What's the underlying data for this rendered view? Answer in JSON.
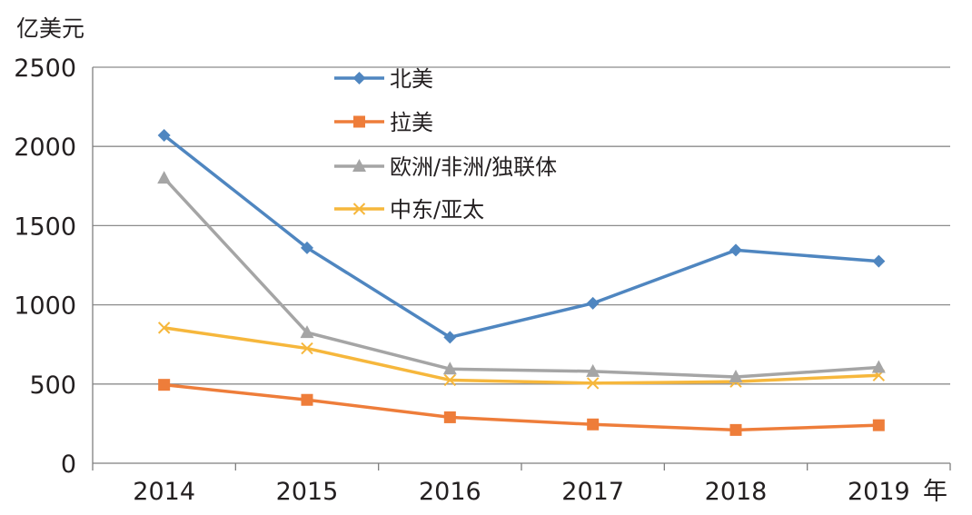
{
  "chart_data": {
    "type": "line",
    "ylabel": "亿美元",
    "xlabel": "年",
    "categories": [
      "2014",
      "2015",
      "2016",
      "2017",
      "2018",
      "2019"
    ],
    "ylim": [
      0,
      2500
    ],
    "yticks": [
      "0",
      "500",
      "1000",
      "1500",
      "2000",
      "2500"
    ],
    "grid": "horizontal",
    "legend_position": "top-center",
    "series": [
      {
        "name": "北美",
        "color": "#4f86c0",
        "marker": "diamond",
        "values": [
          2070,
          1360,
          795,
          1010,
          1345,
          1275
        ]
      },
      {
        "name": "拉美",
        "color": "#ee7d3a",
        "marker": "square",
        "values": [
          495,
          400,
          290,
          245,
          210,
          240
        ]
      },
      {
        "name": "欧洲/非洲/独联体",
        "color": "#a5a5a5",
        "marker": "triangle",
        "values": [
          1800,
          825,
          595,
          580,
          545,
          605
        ]
      },
      {
        "name": "中东/亚太",
        "color": "#f6b73c",
        "marker": "x",
        "values": [
          855,
          725,
          525,
          505,
          515,
          555
        ]
      }
    ]
  }
}
